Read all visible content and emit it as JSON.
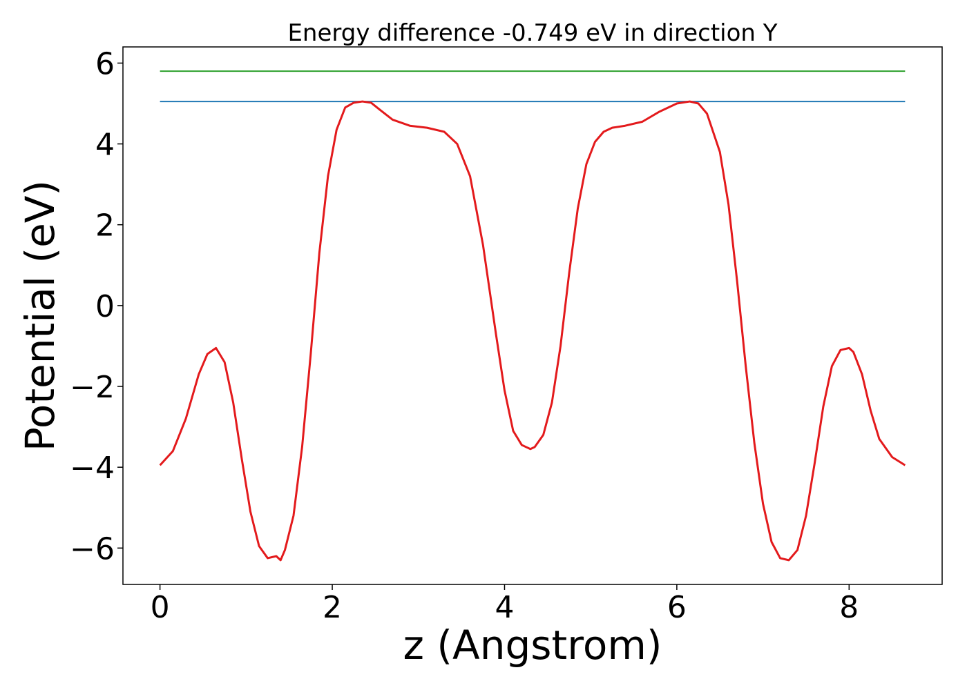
{
  "chart_data": {
    "type": "line",
    "title": "Energy difference -0.749 eV in direction Y",
    "xlabel": "z (Angstrom)",
    "ylabel": "Potential (eV)",
    "xlim": [
      -0.43,
      9.08
    ],
    "ylim": [
      -6.9,
      6.4
    ],
    "xticks": [
      0,
      2,
      4,
      6,
      8
    ],
    "xtick_labels": [
      "0",
      "2",
      "4",
      "6",
      "8"
    ],
    "yticks": [
      -6,
      -4,
      -2,
      0,
      2,
      4,
      6
    ],
    "ytick_labels": [
      "−6",
      "−4",
      "−2",
      "0",
      "2",
      "4",
      "6"
    ],
    "grid": false,
    "legend": "none",
    "hlines": [
      {
        "y": 5.8,
        "x_range": [
          0.0,
          8.65
        ],
        "color": "#2ca02c"
      },
      {
        "y": 5.05,
        "x_range": [
          0.0,
          8.65
        ],
        "color": "#1f77b4"
      }
    ],
    "series": [
      {
        "color": "#e31a1c",
        "x": [
          0.0,
          0.15,
          0.3,
          0.45,
          0.55,
          0.65,
          0.75,
          0.85,
          0.95,
          1.05,
          1.15,
          1.25,
          1.35,
          1.4,
          1.45,
          1.55,
          1.65,
          1.75,
          1.85,
          1.95,
          2.05,
          2.15,
          2.25,
          2.35,
          2.45,
          2.55,
          2.7,
          2.9,
          3.1,
          3.3,
          3.45,
          3.6,
          3.75,
          3.9,
          4.0,
          4.1,
          4.2,
          4.3,
          4.35,
          4.45,
          4.55,
          4.65,
          4.75,
          4.85,
          4.95,
          5.05,
          5.15,
          5.25,
          5.4,
          5.6,
          5.8,
          6.0,
          6.15,
          6.25,
          6.35,
          6.5,
          6.6,
          6.7,
          6.8,
          6.9,
          7.0,
          7.1,
          7.2,
          7.3,
          7.4,
          7.5,
          7.6,
          7.7,
          7.8,
          7.9,
          8.0,
          8.05,
          8.15,
          8.25,
          8.35,
          8.5,
          8.65
        ],
        "y": [
          -3.95,
          -3.6,
          -2.8,
          -1.7,
          -1.2,
          -1.05,
          -1.4,
          -2.4,
          -3.8,
          -5.1,
          -5.95,
          -6.25,
          -6.2,
          -6.3,
          -6.05,
          -5.2,
          -3.5,
          -1.2,
          1.3,
          3.2,
          4.35,
          4.9,
          5.02,
          5.05,
          5.02,
          4.85,
          4.6,
          4.45,
          4.4,
          4.3,
          4.0,
          3.2,
          1.5,
          -0.7,
          -2.1,
          -3.1,
          -3.45,
          -3.55,
          -3.5,
          -3.2,
          -2.4,
          -1.0,
          0.8,
          2.4,
          3.5,
          4.05,
          4.3,
          4.4,
          4.45,
          4.55,
          4.8,
          5.0,
          5.05,
          5.0,
          4.75,
          3.8,
          2.5,
          0.6,
          -1.5,
          -3.4,
          -4.9,
          -5.85,
          -6.25,
          -6.3,
          -6.05,
          -5.2,
          -3.9,
          -2.5,
          -1.5,
          -1.1,
          -1.05,
          -1.15,
          -1.7,
          -2.6,
          -3.3,
          -3.75,
          -3.95
        ]
      }
    ]
  }
}
